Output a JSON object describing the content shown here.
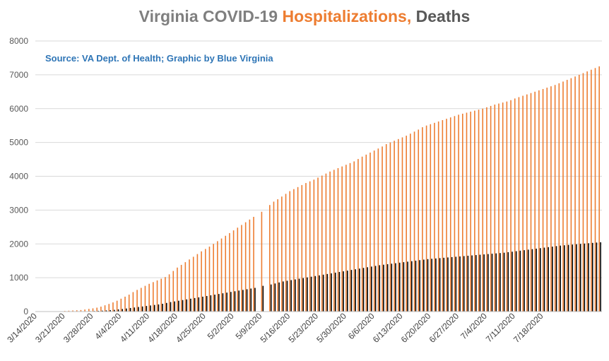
{
  "title": {
    "part1": "Virginia COVID-19 ",
    "part2": "Hospitalizations,",
    "part3": " Deaths"
  },
  "subtitle": "Source: VA Dept. of Health; Graphic by Blue Virginia",
  "colors": {
    "hospitalizations": "#ed7d31",
    "deaths": "#000000",
    "grid": "#d9d9d9",
    "axis": "#bfbfbf"
  },
  "chart_data": {
    "type": "bar",
    "title": "Virginia COVID-19 Hospitalizations, Deaths",
    "subtitle": "Source: VA Dept. of Health; Graphic by Blue Virginia",
    "xlabel": "",
    "ylabel": "",
    "ylim": [
      0,
      8000
    ],
    "yticks": [
      0,
      1000,
      2000,
      3000,
      4000,
      5000,
      6000,
      7000,
      8000
    ],
    "grid": true,
    "legend": "none",
    "x_start": "2020-03-14",
    "x_end": "2020-07-23",
    "xtick_labels": [
      "3/14/2020",
      "3/21/2020",
      "3/28/2020",
      "4/4/2020",
      "4/11/2020",
      "4/18/2020",
      "4/25/2020",
      "5/2/2020",
      "5/9/2020",
      "5/16/2020",
      "5/23/2020",
      "5/30/2020",
      "6/6/2020",
      "6/13/2020",
      "6/20/2020",
      "6/27/2020",
      "7/4/2020",
      "7/11/2020",
      "7/18/2020"
    ],
    "series": [
      {
        "name": "Hospitalizations",
        "color": "#ed7d31",
        "values": [
          0,
          0,
          0,
          0,
          0,
          0,
          0,
          19,
          25,
          32,
          38,
          45,
          60,
          78,
          95,
          115,
          145,
          185,
          225,
          270,
          320,
          380,
          440,
          500,
          575,
          640,
          700,
          760,
          820,
          870,
          920,
          970,
          1020,
          1100,
          1200,
          1300,
          1380,
          1460,
          1540,
          1620,
          1700,
          1780,
          1850,
          1920,
          2000,
          2080,
          2160,
          2240,
          2320,
          2400,
          2480,
          2560,
          2640,
          2720,
          2800,
          0,
          2950,
          0,
          3150,
          3250,
          3320,
          3400,
          3480,
          3560,
          3620,
          3680,
          3740,
          3800,
          3850,
          3900,
          3960,
          4020,
          4080,
          4140,
          4190,
          4240,
          4290,
          4340,
          4390,
          4440,
          4510,
          4580,
          4640,
          4700,
          4760,
          4820,
          4880,
          4950,
          5000,
          5050,
          5100,
          5150,
          5200,
          5260,
          5320,
          5380,
          5450,
          5500,
          5540,
          5580,
          5620,
          5660,
          5700,
          5740,
          5780,
          5820,
          5850,
          5880,
          5910,
          5940,
          5970,
          6000,
          6040,
          6080,
          6120,
          6150,
          6180,
          6210,
          6250,
          6300,
          6340,
          6380,
          6420,
          6460,
          6500,
          6540,
          6580,
          6620,
          6660,
          6700,
          6750,
          6800,
          6850,
          6900,
          6950,
          7000,
          7050,
          7100,
          7150,
          7200,
          7250
        ]
      },
      {
        "name": "Deaths",
        "color": "#000000",
        "values": [
          0,
          0,
          0,
          0,
          0,
          0,
          0,
          2,
          3,
          4,
          6,
          8,
          10,
          13,
          17,
          22,
          27,
          33,
          41,
          50,
          63,
          75,
          90,
          105,
          120,
          135,
          150,
          165,
          180,
          195,
          210,
          230,
          255,
          280,
          300,
          320,
          340,
          360,
          380,
          400,
          420,
          440,
          460,
          480,
          500,
          520,
          540,
          560,
          580,
          600,
          620,
          640,
          660,
          680,
          700,
          0,
          760,
          0,
          800,
          830,
          860,
          890,
          910,
          930,
          950,
          970,
          990,
          1010,
          1030,
          1050,
          1070,
          1090,
          1110,
          1130,
          1150,
          1170,
          1190,
          1210,
          1230,
          1250,
          1270,
          1290,
          1310,
          1330,
          1350,
          1370,
          1385,
          1400,
          1415,
          1430,
          1445,
          1460,
          1475,
          1490,
          1505,
          1520,
          1535,
          1550,
          1560,
          1570,
          1580,
          1590,
          1600,
          1610,
          1620,
          1630,
          1640,
          1650,
          1660,
          1670,
          1680,
          1690,
          1700,
          1710,
          1720,
          1730,
          1740,
          1755,
          1770,
          1785,
          1800,
          1815,
          1830,
          1845,
          1860,
          1875,
          1890,
          1905,
          1920,
          1935,
          1950,
          1960,
          1970,
          1980,
          1990,
          2000,
          2010,
          2020,
          2030,
          2040,
          2050
        ]
      }
    ]
  }
}
